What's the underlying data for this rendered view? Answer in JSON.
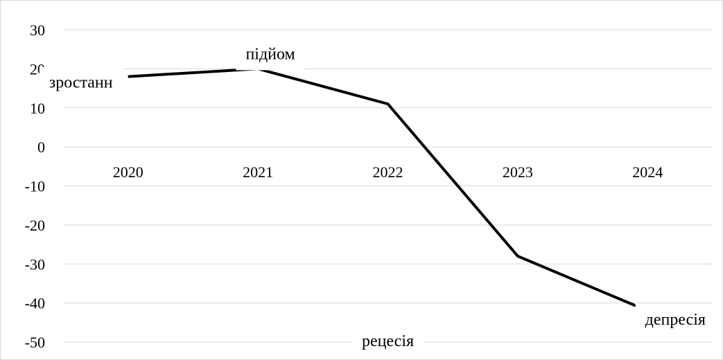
{
  "chart_data": {
    "type": "line",
    "title": "",
    "xlabel": "",
    "ylabel": "",
    "categories": [
      "2020",
      "2021",
      "2022",
      "2023",
      "2024"
    ],
    "series": [
      {
        "values": [
          18,
          20,
          11,
          -28,
          -42
        ]
      }
    ],
    "ylim": [
      -50,
      30
    ],
    "yticks": [
      30,
      20,
      10,
      0,
      -10,
      -20,
      -30,
      -40,
      -50
    ],
    "grid": true,
    "legend": "none",
    "line_color": "#000000",
    "grid_color": "#d9d9d9",
    "annotations": [
      {
        "text": "зростанн",
        "category": "2020",
        "value": 18
      },
      {
        "text": "підйом",
        "category": "2021",
        "value": 20
      },
      {
        "text": "рецесія",
        "category": "2022",
        "value": -50
      },
      {
        "text": "депресія",
        "category": "2024",
        "value": -42
      }
    ]
  }
}
